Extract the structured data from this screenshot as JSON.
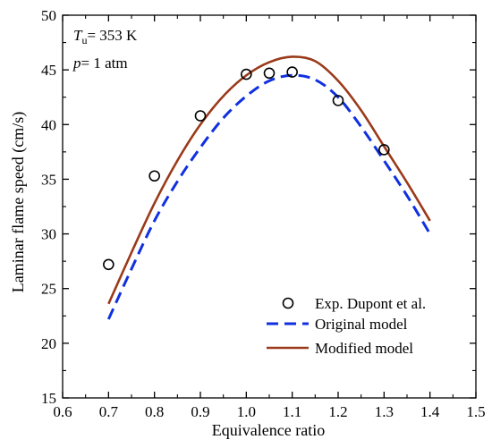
{
  "chart_data": {
    "type": "line",
    "xlabel": "Equivalence ratio",
    "ylabel": "Laminar flame speed (cm/s)",
    "xlim": [
      0.6,
      1.5
    ],
    "ylim": [
      15,
      50
    ],
    "xticks": [
      "0.6",
      "0.7",
      "0.8",
      "0.9",
      "1.0",
      "1.1",
      "1.2",
      "1.3",
      "1.4",
      "1.5"
    ],
    "yticks": [
      "15",
      "20",
      "25",
      "30",
      "35",
      "40",
      "45",
      "50"
    ],
    "grid": false,
    "legend_position": "bottom-right",
    "annotations": {
      "temperature": {
        "symbol": "T",
        "subscript": "u",
        "value": "= 353 K"
      },
      "pressure": {
        "symbol": "p",
        "value": "= 1 atm"
      }
    },
    "series": [
      {
        "name": "Exp. Dupont et al.",
        "kind": "scatter",
        "marker": "open-circle",
        "color": "#000000",
        "x": [
          0.7,
          0.8,
          0.9,
          1.0,
          1.05,
          1.1,
          1.2,
          1.3
        ],
        "y": [
          27.2,
          35.3,
          40.8,
          44.6,
          44.7,
          44.8,
          42.2,
          37.7
        ]
      },
      {
        "name": "Original model",
        "kind": "line",
        "style": "dashed",
        "color": "#1030e0",
        "x": [
          0.7,
          0.75,
          0.8,
          0.85,
          0.9,
          0.95,
          1.0,
          1.05,
          1.1,
          1.15,
          1.2,
          1.25,
          1.3,
          1.35,
          1.4
        ],
        "y": [
          22.2,
          26.8,
          31.2,
          34.8,
          37.9,
          40.6,
          42.6,
          44.0,
          44.5,
          44.1,
          42.5,
          39.8,
          36.7,
          33.5,
          30.0
        ]
      },
      {
        "name": "Modified model",
        "kind": "line",
        "style": "solid",
        "color": "#9a3a1a",
        "x": [
          0.7,
          0.75,
          0.8,
          0.85,
          0.9,
          0.95,
          1.0,
          1.05,
          1.1,
          1.15,
          1.2,
          1.25,
          1.3,
          1.35,
          1.4
        ],
        "y": [
          23.6,
          28.3,
          32.8,
          36.7,
          40.0,
          42.6,
          44.5,
          45.7,
          46.2,
          45.8,
          44.0,
          41.3,
          38.0,
          34.7,
          31.2
        ]
      }
    ]
  }
}
